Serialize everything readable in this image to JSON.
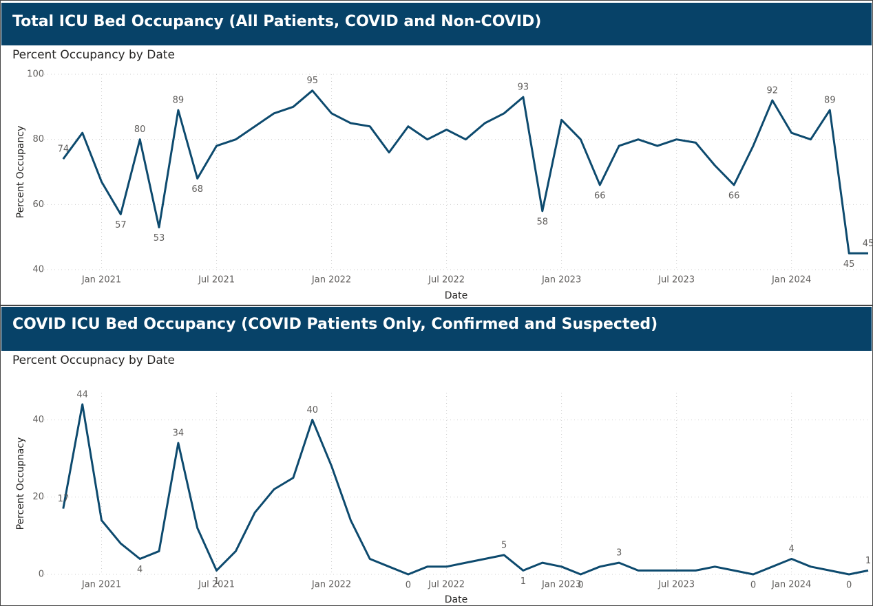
{
  "chart_data": [
    {
      "type": "line",
      "title": "Total ICU Bed Occupancy (All Patients, COVID and Non-COVID)",
      "subtitle": "Percent Occupancy by Date",
      "x_label": "Date",
      "y_label": "Percent Occupancy",
      "color": "#0d4a6e",
      "grid": true,
      "x": [
        "2020-11",
        "2020-12",
        "2021-01",
        "2021-02",
        "2021-03",
        "2021-04",
        "2021-05",
        "2021-06",
        "2021-07",
        "2021-08",
        "2021-09",
        "2021-10",
        "2021-11",
        "2021-12",
        "2022-01",
        "2022-02",
        "2022-03",
        "2022-04",
        "2022-05",
        "2022-06",
        "2022-07",
        "2022-08",
        "2022-09",
        "2022-10",
        "2022-11",
        "2022-12",
        "2023-01",
        "2023-02",
        "2023-03",
        "2023-04",
        "2023-05",
        "2023-06",
        "2023-07",
        "2023-08",
        "2023-09",
        "2023-10",
        "2023-11",
        "2023-12",
        "2024-01",
        "2024-02",
        "2024-03",
        "2024-04",
        "2024-05"
      ],
      "values": [
        74,
        82,
        67,
        57,
        80,
        53,
        89,
        68,
        78,
        80,
        84,
        88,
        90,
        95,
        88,
        85,
        84,
        76,
        84,
        80,
        83,
        80,
        85,
        88,
        93,
        58,
        86,
        80,
        66,
        78,
        80,
        78,
        80,
        79,
        72,
        66,
        78,
        92,
        82,
        80,
        89,
        45,
        45
      ],
      "value_labels": [
        "74",
        null,
        null,
        "57",
        "80",
        "53",
        "89",
        "68",
        null,
        null,
        null,
        null,
        null,
        "95",
        null,
        null,
        null,
        null,
        null,
        null,
        null,
        null,
        null,
        null,
        "93",
        "58",
        null,
        null,
        "66",
        null,
        null,
        null,
        null,
        null,
        null,
        "66",
        null,
        "92",
        null,
        null,
        "89",
        "45",
        "45"
      ],
      "xlim": [
        "2020-10",
        "2024-05"
      ],
      "xticks": [
        {
          "value": "2021-01",
          "label": "Jan 2021"
        },
        {
          "value": "2021-07",
          "label": "Jul 2021"
        },
        {
          "value": "2022-01",
          "label": "Jan 2022"
        },
        {
          "value": "2022-07",
          "label": "Jul 2022"
        },
        {
          "value": "2023-01",
          "label": "Jan 2023"
        },
        {
          "value": "2023-07",
          "label": "Jul 2023"
        },
        {
          "value": "2024-01",
          "label": "Jan 2024"
        }
      ],
      "ylim": [
        40,
        100
      ],
      "yticks": [
        40,
        60,
        80,
        100
      ]
    },
    {
      "type": "line",
      "title": "COVID ICU Bed Occupancy (COVID Patients Only, Confirmed and Suspected)",
      "subtitle": "Percent Occupnacy by Date",
      "x_label": "Date",
      "y_label": "Percent Occupnacy",
      "color": "#0d4a6e",
      "grid": true,
      "x": [
        "2020-11",
        "2020-12",
        "2021-01",
        "2021-02",
        "2021-03",
        "2021-04",
        "2021-05",
        "2021-06",
        "2021-07",
        "2021-08",
        "2021-09",
        "2021-10",
        "2021-11",
        "2021-12",
        "2022-01",
        "2022-02",
        "2022-03",
        "2022-04",
        "2022-05",
        "2022-06",
        "2022-07",
        "2022-08",
        "2022-09",
        "2022-10",
        "2022-11",
        "2022-12",
        "2023-01",
        "2023-02",
        "2023-03",
        "2023-04",
        "2023-05",
        "2023-06",
        "2023-07",
        "2023-08",
        "2023-09",
        "2023-10",
        "2023-11",
        "2023-12",
        "2024-01",
        "2024-02",
        "2024-03",
        "2024-04",
        "2024-05"
      ],
      "values": [
        17,
        44,
        14,
        8,
        4,
        6,
        34,
        12,
        1,
        6,
        16,
        22,
        25,
        40,
        28,
        14,
        4,
        2,
        0,
        2,
        2,
        3,
        4,
        5,
        1,
        3,
        2,
        0,
        2,
        3,
        1,
        1,
        1,
        1,
        2,
        1,
        0,
        2,
        4,
        2,
        1,
        0,
        1
      ],
      "value_labels": [
        "17",
        "44",
        null,
        null,
        "4",
        null,
        "34",
        null,
        "1",
        null,
        null,
        null,
        null,
        "40",
        null,
        null,
        null,
        null,
        "0",
        null,
        null,
        null,
        null,
        "5",
        "1",
        null,
        null,
        "0",
        null,
        "3",
        null,
        null,
        null,
        null,
        null,
        null,
        "0",
        null,
        "4",
        null,
        null,
        "0",
        "1"
      ],
      "xlim": [
        "2020-10",
        "2024-05"
      ],
      "xticks": [
        {
          "value": "2021-01",
          "label": "Jan 2021"
        },
        {
          "value": "2021-07",
          "label": "Jul 2021"
        },
        {
          "value": "2022-01",
          "label": "Jan 2022"
        },
        {
          "value": "2022-07",
          "label": "Jul 2022"
        },
        {
          "value": "2023-01",
          "label": "Jan 2023"
        },
        {
          "value": "2023-07",
          "label": "Jul 2023"
        },
        {
          "value": "2024-01",
          "label": "Jan 2024"
        }
      ],
      "ylim": [
        0,
        47
      ],
      "yticks": [
        0,
        20,
        40
      ]
    }
  ]
}
